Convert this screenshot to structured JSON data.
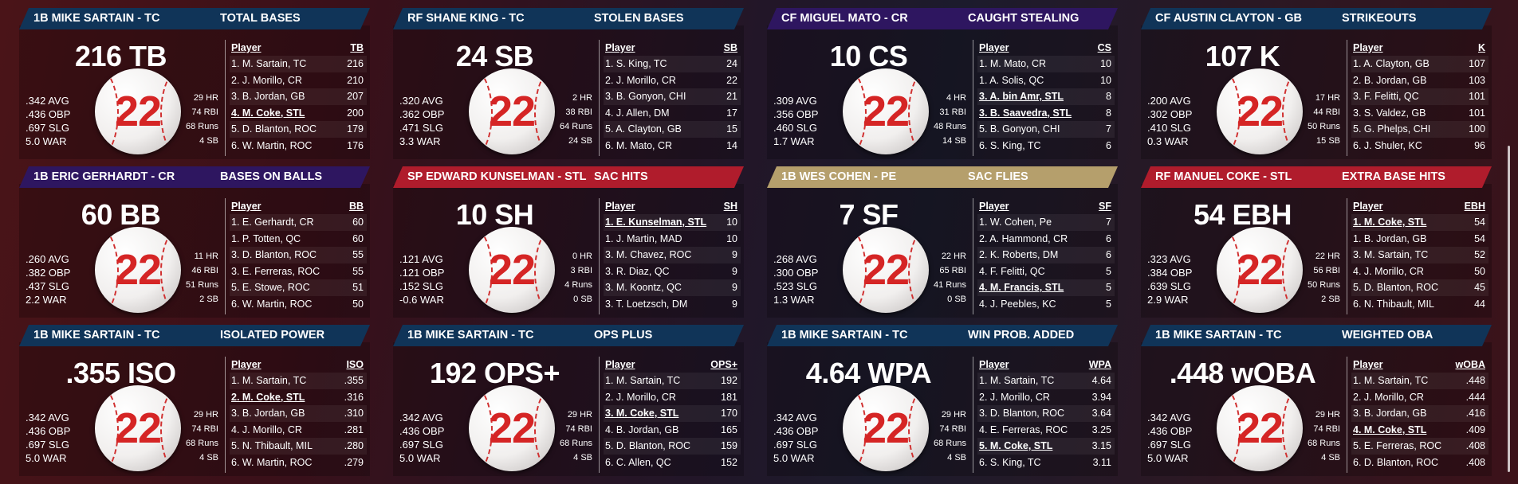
{
  "cards": [
    {
      "header_color": "#103458",
      "player": "1B MIKE SARTAIN - TC",
      "title": "TOTAL BASES",
      "big": "216 TB",
      "number": "22",
      "left": [
        ".342 AVG",
        ".436 OBP",
        ".697 SLG",
        "5.0 WAR"
      ],
      "right": [
        "29 HR",
        "74 RBI",
        "68 Runs",
        "4 SB"
      ],
      "col_player": "Player",
      "col_stat": "TB",
      "rows": [
        {
          "p": "1. M. Sartain, TC",
          "v": "216"
        },
        {
          "p": "2. J. Morillo, CR",
          "v": "210"
        },
        {
          "p": "3. B. Jordan, GB",
          "v": "207"
        },
        {
          "p": "4. M. Coke, STL",
          "v": "200",
          "hl": true
        },
        {
          "p": "5. D. Blanton, ROC",
          "v": "179"
        },
        {
          "p": "6. W. Martin, ROC",
          "v": "176"
        }
      ]
    },
    {
      "header_color": "#103458",
      "player": "RF SHANE KING - TC",
      "title": "STOLEN BASES",
      "big": "24 SB",
      "number": "22",
      "left": [
        ".320 AVG",
        ".362 OBP",
        ".471 SLG",
        "3.3 WAR"
      ],
      "right": [
        "2 HR",
        "38 RBI",
        "64 Runs",
        "24 SB"
      ],
      "col_player": "Player",
      "col_stat": "SB",
      "rows": [
        {
          "p": "1. S. King, TC",
          "v": "24"
        },
        {
          "p": "2. J. Morillo, CR",
          "v": "22"
        },
        {
          "p": "3. B. Gonyon, CHI",
          "v": "21"
        },
        {
          "p": "4. J. Allen, DM",
          "v": "17"
        },
        {
          "p": "5. A. Clayton, GB",
          "v": "15"
        },
        {
          "p": "6. M. Mato, CR",
          "v": "14"
        }
      ]
    },
    {
      "header_color": "#2e1660",
      "player": "CF MIGUEL MATO - CR",
      "title": "CAUGHT STEALING",
      "big": "10 CS",
      "number": "22",
      "left": [
        ".309 AVG",
        ".356 OBP",
        ".460 SLG",
        "1.7 WAR"
      ],
      "right": [
        "4 HR",
        "31 RBI",
        "48 Runs",
        "14 SB"
      ],
      "col_player": "Player",
      "col_stat": "CS",
      "rows": [
        {
          "p": "1. M. Mato, CR",
          "v": "10"
        },
        {
          "p": "1. A. Solis, QC",
          "v": "10"
        },
        {
          "p": "3. A. bin Amr, STL",
          "v": "8",
          "hl": true
        },
        {
          "p": "3. B. Saavedra, STL",
          "v": "8",
          "hl": true
        },
        {
          "p": "5. B. Gonyon, CHI",
          "v": "7"
        },
        {
          "p": "6. S. King, TC",
          "v": "6"
        }
      ]
    },
    {
      "header_color": "#103458",
      "player": "CF AUSTIN CLAYTON - GB",
      "title": "STRIKEOUTS",
      "big": "107 K",
      "number": "22",
      "left": [
        ".200 AVG",
        ".302 OBP",
        ".410 SLG",
        "0.3 WAR"
      ],
      "right": [
        "17 HR",
        "44 RBI",
        "50 Runs",
        "15 SB"
      ],
      "col_player": "Player",
      "col_stat": "K",
      "rows": [
        {
          "p": "1. A. Clayton, GB",
          "v": "107"
        },
        {
          "p": "2. B. Jordan, GB",
          "v": "103"
        },
        {
          "p": "3. F. Felitti, QC",
          "v": "101"
        },
        {
          "p": "3. S. Valdez, GB",
          "v": "101"
        },
        {
          "p": "5. G. Phelps, CHI",
          "v": "100"
        },
        {
          "p": "6. J. Shuler, KC",
          "v": "96"
        }
      ]
    },
    {
      "header_color": "#2e1660",
      "player": "1B ERIC GERHARDT - CR",
      "title": "BASES ON BALLS",
      "big": "60 BB",
      "number": "22",
      "left": [
        ".260 AVG",
        ".382 OBP",
        ".437 SLG",
        "2.2 WAR"
      ],
      "right": [
        "11 HR",
        "46 RBI",
        "51 Runs",
        "2 SB"
      ],
      "col_player": "Player",
      "col_stat": "BB",
      "rows": [
        {
          "p": "1. E. Gerhardt, CR",
          "v": "60"
        },
        {
          "p": "1. P. Totten, QC",
          "v": "60"
        },
        {
          "p": "3. D. Blanton, ROC",
          "v": "55"
        },
        {
          "p": "3. E. Ferreras, ROC",
          "v": "55"
        },
        {
          "p": "5. E. Stowe, ROC",
          "v": "51"
        },
        {
          "p": "6. W. Martin, ROC",
          "v": "50"
        }
      ]
    },
    {
      "header_color": "#b01c2c",
      "player": "SP EDWARD KUNSELMAN - STL",
      "title": "SAC HITS",
      "big": "10 SH",
      "number": "22",
      "left": [
        ".121 AVG",
        ".121 OBP",
        ".152 SLG",
        "-0.6 WAR"
      ],
      "right": [
        "0 HR",
        "3 RBI",
        "4 Runs",
        "0 SB"
      ],
      "col_player": "Player",
      "col_stat": "SH",
      "rows": [
        {
          "p": "1. E. Kunselman, STL",
          "v": "10",
          "hl": true
        },
        {
          "p": "1. J. Martin, MAD",
          "v": "10"
        },
        {
          "p": "3. M. Chavez, ROC",
          "v": "9"
        },
        {
          "p": "3. R. Diaz, QC",
          "v": "9"
        },
        {
          "p": "3. M. Koontz, QC",
          "v": "9"
        },
        {
          "p": "3. T. Loetzsch, DM",
          "v": "9"
        }
      ]
    },
    {
      "header_color": "#b59f6c",
      "player": "1B WES COHEN - PE",
      "title": "SAC FLIES",
      "big": "7 SF",
      "number": "22",
      "left": [
        ".268 AVG",
        ".300 OBP",
        ".523 SLG",
        "1.3 WAR"
      ],
      "right": [
        "22 HR",
        "65 RBI",
        "41 Runs",
        "0 SB"
      ],
      "col_player": "Player",
      "col_stat": "SF",
      "rows": [
        {
          "p": "1. W. Cohen, Pe",
          "v": "7"
        },
        {
          "p": "2. A. Hammond, CR",
          "v": "6"
        },
        {
          "p": "2. K. Roberts, DM",
          "v": "6"
        },
        {
          "p": "4. F. Felitti, QC",
          "v": "5"
        },
        {
          "p": "4. M. Francis, STL",
          "v": "5",
          "hl": true
        },
        {
          "p": "4. J. Peebles, KC",
          "v": "5"
        }
      ]
    },
    {
      "header_color": "#b01c2c",
      "player": "RF MANUEL COKE - STL",
      "title": "EXTRA BASE HITS",
      "big": "54 EBH",
      "number": "22",
      "left": [
        ".323 AVG",
        ".384 OBP",
        ".639 SLG",
        "2.9 WAR"
      ],
      "right": [
        "22 HR",
        "56 RBI",
        "50 Runs",
        "2 SB"
      ],
      "col_player": "Player",
      "col_stat": "EBH",
      "rows": [
        {
          "p": "1. M. Coke, STL",
          "v": "54",
          "hl": true
        },
        {
          "p": "1. B. Jordan, GB",
          "v": "54"
        },
        {
          "p": "3. M. Sartain, TC",
          "v": "52"
        },
        {
          "p": "4. J. Morillo, CR",
          "v": "50"
        },
        {
          "p": "5. D. Blanton, ROC",
          "v": "45"
        },
        {
          "p": "6. N. Thibault, MIL",
          "v": "44"
        }
      ]
    },
    {
      "header_color": "#103458",
      "player": "1B MIKE SARTAIN - TC",
      "title": "ISOLATED POWER",
      "big": ".355 ISO",
      "number": "22",
      "left": [
        ".342 AVG",
        ".436 OBP",
        ".697 SLG",
        "5.0 WAR"
      ],
      "right": [
        "29 HR",
        "74 RBI",
        "68 Runs",
        "4 SB"
      ],
      "col_player": "Player",
      "col_stat": "ISO",
      "rows": [
        {
          "p": "1. M. Sartain, TC",
          "v": ".355"
        },
        {
          "p": "2. M. Coke, STL",
          "v": ".316",
          "hl": true
        },
        {
          "p": "3. B. Jordan, GB",
          "v": ".310"
        },
        {
          "p": "4. J. Morillo, CR",
          "v": ".281"
        },
        {
          "p": "5. N. Thibault, MIL",
          "v": ".280"
        },
        {
          "p": "6. W. Martin, ROC",
          "v": ".279"
        }
      ]
    },
    {
      "header_color": "#103458",
      "player": "1B MIKE SARTAIN - TC",
      "title": "OPS PLUS",
      "big": "192 OPS+",
      "number": "22",
      "left": [
        ".342 AVG",
        ".436 OBP",
        ".697 SLG",
        "5.0 WAR"
      ],
      "right": [
        "29 HR",
        "74 RBI",
        "68 Runs",
        "4 SB"
      ],
      "col_player": "Player",
      "col_stat": "OPS+",
      "rows": [
        {
          "p": "1. M. Sartain, TC",
          "v": "192"
        },
        {
          "p": "2. J. Morillo, CR",
          "v": "181"
        },
        {
          "p": "3. M. Coke, STL",
          "v": "170",
          "hl": true
        },
        {
          "p": "4. B. Jordan, GB",
          "v": "165"
        },
        {
          "p": "5. D. Blanton, ROC",
          "v": "159"
        },
        {
          "p": "6. C. Allen, QC",
          "v": "152"
        }
      ]
    },
    {
      "header_color": "#103458",
      "player": "1B MIKE SARTAIN - TC",
      "title": "WIN PROB. ADDED",
      "big": "4.64 WPA",
      "number": "22",
      "left": [
        ".342 AVG",
        ".436 OBP",
        ".697 SLG",
        "5.0 WAR"
      ],
      "right": [
        "29 HR",
        "74 RBI",
        "68 Runs",
        "4 SB"
      ],
      "col_player": "Player",
      "col_stat": "WPA",
      "rows": [
        {
          "p": "1. M. Sartain, TC",
          "v": "4.64"
        },
        {
          "p": "2. J. Morillo, CR",
          "v": "3.94"
        },
        {
          "p": "3. D. Blanton, ROC",
          "v": "3.64"
        },
        {
          "p": "4. E. Ferreras, ROC",
          "v": "3.25"
        },
        {
          "p": "5. M. Coke, STL",
          "v": "3.15",
          "hl": true
        },
        {
          "p": "6. S. King, TC",
          "v": "3.11"
        }
      ]
    },
    {
      "header_color": "#103458",
      "player": "1B MIKE SARTAIN - TC",
      "title": "WEIGHTED OBA",
      "big": ".448 wOBA",
      "number": "22",
      "left": [
        ".342 AVG",
        ".436 OBP",
        ".697 SLG",
        "5.0 WAR"
      ],
      "right": [
        "29 HR",
        "74 RBI",
        "68 Runs",
        "4 SB"
      ],
      "col_player": "Player",
      "col_stat": "wOBA",
      "rows": [
        {
          "p": "1. M. Sartain, TC",
          "v": ".448"
        },
        {
          "p": "2. J. Morillo, CR",
          "v": ".444"
        },
        {
          "p": "3. B. Jordan, GB",
          "v": ".416"
        },
        {
          "p": "4. M. Coke, STL",
          "v": ".409",
          "hl": true
        },
        {
          "p": "5. E. Ferreras, ROC",
          "v": ".408"
        },
        {
          "p": "6. D. Blanton, ROC",
          "v": ".408"
        }
      ]
    }
  ]
}
